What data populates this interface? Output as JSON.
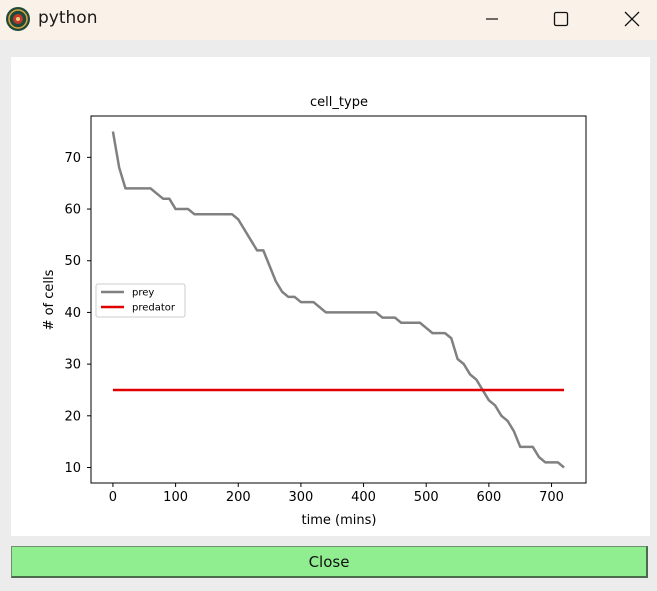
{
  "window": {
    "title": "python"
  },
  "plot": {
    "title": "cell_type",
    "xlabel": "time (mins)",
    "ylabel": "# of cells",
    "legend_labels": [
      "prey",
      "predator"
    ]
  },
  "chart_data": {
    "type": "line",
    "title": "cell_type",
    "xlabel": "time (mins)",
    "ylabel": "# of cells",
    "xlim": [
      -35,
      755
    ],
    "ylim": [
      7,
      78
    ],
    "xticks": [
      0,
      100,
      200,
      300,
      400,
      500,
      600,
      700
    ],
    "yticks": [
      10,
      20,
      30,
      40,
      50,
      60,
      70
    ],
    "grid": false,
    "legend_position": "center-left",
    "series": [
      {
        "name": "prey",
        "color": "#808080",
        "x": [
          0,
          10,
          20,
          30,
          40,
          50,
          60,
          70,
          80,
          90,
          100,
          110,
          120,
          130,
          140,
          150,
          160,
          170,
          180,
          190,
          200,
          210,
          220,
          230,
          240,
          250,
          260,
          270,
          280,
          290,
          300,
          310,
          320,
          330,
          340,
          350,
          360,
          370,
          380,
          390,
          400,
          410,
          420,
          430,
          440,
          450,
          460,
          470,
          480,
          490,
          500,
          510,
          520,
          530,
          540,
          550,
          560,
          570,
          580,
          590,
          600,
          610,
          620,
          630,
          640,
          650,
          660,
          670,
          680,
          690,
          700,
          710,
          720
        ],
        "values": [
          75,
          68,
          64,
          64,
          64,
          64,
          64,
          63,
          62,
          62,
          60,
          60,
          60,
          59,
          59,
          59,
          59,
          59,
          59,
          59,
          58,
          56,
          54,
          52,
          52,
          49,
          46,
          44,
          43,
          43,
          42,
          42,
          42,
          41,
          40,
          40,
          40,
          40,
          40,
          40,
          40,
          40,
          40,
          39,
          39,
          39,
          38,
          38,
          38,
          38,
          37,
          36,
          36,
          36,
          35,
          31,
          30,
          28,
          27,
          25,
          23,
          22,
          20,
          19,
          17,
          14,
          14,
          14,
          12,
          11,
          11,
          11,
          10
        ]
      },
      {
        "name": "predator",
        "color": "#e00000",
        "x": [
          0,
          720
        ],
        "values": [
          25,
          25
        ]
      }
    ]
  },
  "buttons": {
    "close_label": "Close"
  }
}
